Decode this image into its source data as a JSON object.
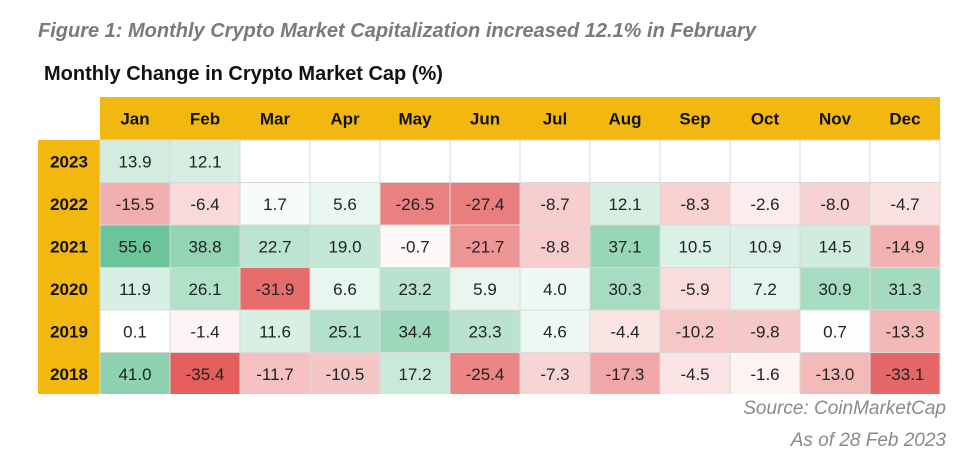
{
  "figure_title": "Figure 1: Monthly Crypto Market Capitalization increased 12.1% in February",
  "source": "Source: CoinMarketCap",
  "as_of": "As of 28 Feb 2023",
  "colors": {
    "header_bg": "#f3b80f",
    "positive_max": "#6cc59a",
    "negative_max": "#e45e5e",
    "neutral": "#ffffff"
  },
  "chart_data": {
    "type": "heatmap",
    "title": "Monthly Change in Crypto Market Cap (%)",
    "columns": [
      "Jan",
      "Feb",
      "Mar",
      "Apr",
      "May",
      "Jun",
      "Jul",
      "Aug",
      "Sep",
      "Oct",
      "Nov",
      "Dec"
    ],
    "rows": [
      "2023",
      "2022",
      "2021",
      "2020",
      "2019",
      "2018"
    ],
    "values": [
      [
        13.9,
        12.1,
        null,
        null,
        null,
        null,
        null,
        null,
        null,
        null,
        null,
        null
      ],
      [
        -15.5,
        -6.4,
        1.7,
        5.6,
        -26.5,
        -27.4,
        -8.7,
        12.1,
        -8.3,
        -2.6,
        -8.0,
        -4.7
      ],
      [
        55.6,
        38.8,
        22.7,
        19.0,
        -0.7,
        -21.7,
        -8.8,
        37.1,
        10.5,
        10.9,
        14.5,
        -14.9
      ],
      [
        11.9,
        26.1,
        -31.9,
        6.6,
        23.2,
        5.9,
        4.0,
        30.3,
        -5.9,
        7.2,
        30.9,
        31.3
      ],
      [
        0.1,
        -1.4,
        11.6,
        25.1,
        34.4,
        23.3,
        4.6,
        -4.4,
        -10.2,
        -9.8,
        0.7,
        -13.3
      ],
      [
        41.0,
        -35.4,
        -11.7,
        -10.5,
        17.2,
        -25.4,
        -7.3,
        -17.3,
        -4.5,
        -1.6,
        -13.0,
        -33.1
      ]
    ],
    "value_format": "one decimal",
    "color_scale": "diverging green-white-red"
  }
}
